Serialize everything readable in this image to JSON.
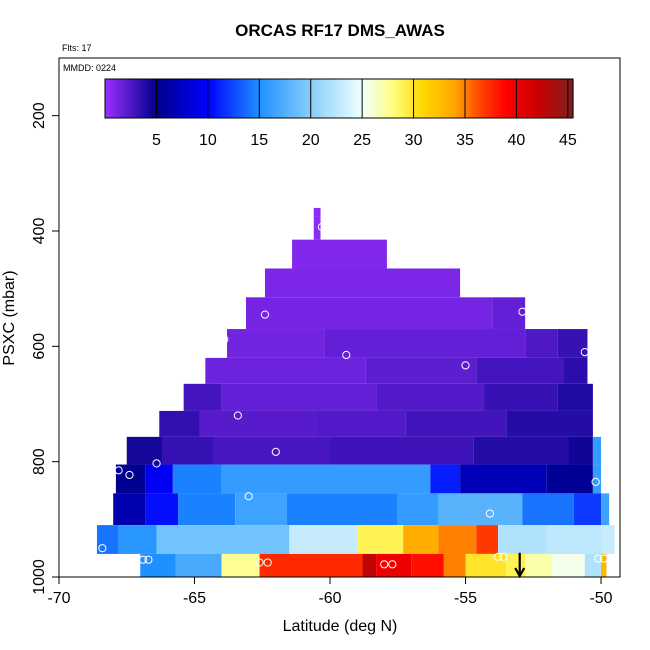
{
  "chart_data": {
    "type": "heatmap",
    "title": "ORCAS RF17 DMS_AWAS",
    "annotation_flights": "Flts: 17",
    "annotation_date": "MMDD: 0224",
    "xlabel": "Latitude (deg N)",
    "ylabel": "PSXC (mbar)",
    "xlim": [
      -70,
      -49.3
    ],
    "ylim": [
      1000,
      100
    ],
    "x_ticks": [
      -70,
      -65,
      -60,
      -55,
      -50
    ],
    "x_tick_labels": [
      "-70",
      "-65",
      "-60",
      "-55",
      "-50"
    ],
    "y_ticks": [
      200,
      400,
      600,
      800,
      1000
    ],
    "y_tick_labels": [
      "200",
      "400",
      "600",
      "800",
      "1000"
    ],
    "colorbar": {
      "range": [
        0,
        45.5
      ],
      "ticks": [
        5,
        10,
        15,
        20,
        25,
        30,
        35,
        40,
        45
      ],
      "tick_labels": [
        "5",
        "10",
        "15",
        "20",
        "25",
        "30",
        "35",
        "40",
        "45"
      ],
      "boundaries": [
        0,
        5,
        10,
        15,
        20,
        25,
        30,
        35,
        40,
        45,
        45.5
      ],
      "stops": [
        [
          0,
          "#9b30ff"
        ],
        [
          5,
          "#00008b"
        ],
        [
          10,
          "#0000ff"
        ],
        [
          15,
          "#1e90ff"
        ],
        [
          20,
          "#87cefa"
        ],
        [
          25,
          "#f0ffff"
        ],
        [
          28,
          "#ffff7f"
        ],
        [
          31,
          "#ffd700"
        ],
        [
          34,
          "#ffa500"
        ],
        [
          36.5,
          "#ff4500"
        ],
        [
          39,
          "#ff0000"
        ],
        [
          42,
          "#cd0000"
        ],
        [
          45.5,
          "#7f1f1f"
        ]
      ]
    },
    "bands": [
      {
        "p_top": 360,
        "p_bottom": 375,
        "segments": [
          {
            "x0": -60.6,
            "x1": -60.35,
            "v": 0.5
          }
        ]
      },
      {
        "p_top": 375,
        "p_bottom": 415,
        "segments": [
          {
            "x0": -60.6,
            "x1": -60.35,
            "v": 0.5
          }
        ]
      },
      {
        "p_top": 415,
        "p_bottom": 465,
        "segments": [
          {
            "x0": -61.4,
            "x1": -57.9,
            "v": 0.8
          }
        ]
      },
      {
        "p_top": 465,
        "p_bottom": 515,
        "segments": [
          {
            "x0": -62.4,
            "x1": -55.2,
            "v": 1.0
          }
        ]
      },
      {
        "p_top": 515,
        "p_bottom": 570,
        "segments": [
          {
            "x0": -63.1,
            "x1": -54.0,
            "v": 1.2
          },
          {
            "x0": -54.0,
            "x1": -52.8,
            "v": 1.8
          }
        ]
      },
      {
        "p_top": 570,
        "p_bottom": 620,
        "segments": [
          {
            "x0": -63.8,
            "x1": -60.2,
            "v": 1.3
          },
          {
            "x0": -60.2,
            "x1": -52.8,
            "v": 1.8
          },
          {
            "x0": -52.8,
            "x1": -51.6,
            "v": 2.5
          },
          {
            "x0": -51.6,
            "x1": -50.5,
            "v": 3.2
          }
        ]
      },
      {
        "p_top": 620,
        "p_bottom": 665,
        "segments": [
          {
            "x0": -64.6,
            "x1": -58.7,
            "v": 1.5
          },
          {
            "x0": -58.7,
            "x1": -54.6,
            "v": 2.0
          },
          {
            "x0": -54.6,
            "x1": -51.4,
            "v": 2.8
          },
          {
            "x0": -51.4,
            "x1": -50.5,
            "v": 3.6
          }
        ]
      },
      {
        "p_top": 665,
        "p_bottom": 712,
        "segments": [
          {
            "x0": -65.4,
            "x1": -64.0,
            "v": 2.8
          },
          {
            "x0": -64.0,
            "x1": -58.3,
            "v": 1.8
          },
          {
            "x0": -58.3,
            "x1": -54.3,
            "v": 2.3
          },
          {
            "x0": -54.3,
            "x1": -51.6,
            "v": 3.2
          },
          {
            "x0": -51.6,
            "x1": -50.3,
            "v": 4.0
          }
        ]
      },
      {
        "p_top": 712,
        "p_bottom": 757,
        "segments": [
          {
            "x0": -66.3,
            "x1": -64.8,
            "v": 3.4
          },
          {
            "x0": -64.8,
            "x1": -60.5,
            "v": 2.2
          },
          {
            "x0": -60.5,
            "x1": -57.2,
            "v": 2.4
          },
          {
            "x0": -57.2,
            "x1": -53.5,
            "v": 2.9
          },
          {
            "x0": -53.5,
            "x1": -50.3,
            "v": 3.8
          }
        ]
      },
      {
        "p_top": 757,
        "p_bottom": 805,
        "segments": [
          {
            "x0": -67.5,
            "x1": -66.2,
            "v": 4.3
          },
          {
            "x0": -66.2,
            "x1": -64.3,
            "v": 3.3
          },
          {
            "x0": -64.3,
            "x1": -60.0,
            "v": 2.7
          },
          {
            "x0": -60.0,
            "x1": -54.7,
            "v": 3.0
          },
          {
            "x0": -54.7,
            "x1": -51.2,
            "v": 3.8
          },
          {
            "x0": -51.2,
            "x1": -50.3,
            "v": 4.5
          },
          {
            "x0": -50.3,
            "x1": -50.0,
            "v": 16.0
          }
        ]
      },
      {
        "p_top": 805,
        "p_bottom": 855,
        "segments": [
          {
            "x0": -67.9,
            "x1": -66.8,
            "v": 5.2
          },
          {
            "x0": -66.8,
            "x1": -65.8,
            "v": 9.5
          },
          {
            "x0": -65.8,
            "x1": -64.0,
            "v": 14.5
          },
          {
            "x0": -64.0,
            "x1": -56.3,
            "v": 16.0
          },
          {
            "x0": -56.3,
            "x1": -55.2,
            "v": 11.0
          },
          {
            "x0": -55.2,
            "x1": -52.0,
            "v": 7.0
          },
          {
            "x0": -52.0,
            "x1": -50.3,
            "v": 5.5
          },
          {
            "x0": -50.3,
            "x1": -50.0,
            "v": 16.0
          }
        ]
      },
      {
        "p_top": 855,
        "p_bottom": 910,
        "segments": [
          {
            "x0": -68.0,
            "x1": -66.8,
            "v": 6.5
          },
          {
            "x0": -66.8,
            "x1": -65.6,
            "v": 10.5
          },
          {
            "x0": -65.6,
            "x1": -63.5,
            "v": 14.5
          },
          {
            "x0": -63.5,
            "x1": -61.6,
            "v": 16.5
          },
          {
            "x0": -61.6,
            "x1": -57.5,
            "v": 14.5
          },
          {
            "x0": -57.5,
            "x1": -56.0,
            "v": 16.0
          },
          {
            "x0": -56.0,
            "x1": -52.9,
            "v": 17.8
          },
          {
            "x0": -52.9,
            "x1": -51.0,
            "v": 14.0
          },
          {
            "x0": -51.0,
            "x1": -50.0,
            "v": 12.0
          },
          {
            "x0": -50.0,
            "x1": -49.7,
            "v": 16.5
          }
        ]
      },
      {
        "p_top": 910,
        "p_bottom": 960,
        "segments": [
          {
            "x0": -68.6,
            "x1": -67.8,
            "v": 14.0
          },
          {
            "x0": -67.8,
            "x1": -66.4,
            "v": 15.5
          },
          {
            "x0": -66.4,
            "x1": -61.5,
            "v": 19.0
          },
          {
            "x0": -61.5,
            "x1": -59.0,
            "v": 23.0
          },
          {
            "x0": -59.0,
            "x1": -57.3,
            "v": 29.0
          },
          {
            "x0": -57.3,
            "x1": -56.0,
            "v": 33.5
          },
          {
            "x0": -56.0,
            "x1": -54.6,
            "v": 35.0
          },
          {
            "x0": -54.6,
            "x1": -53.8,
            "v": 37.0
          },
          {
            "x0": -53.8,
            "x1": -52.0,
            "v": 22.0
          },
          {
            "x0": -52.0,
            "x1": -50.0,
            "v": 22.5
          },
          {
            "x0": -50.0,
            "x1": -49.5,
            "v": 23.0
          }
        ]
      },
      {
        "p_top": 960,
        "p_bottom": 1000,
        "segments": [
          {
            "x0": -67.0,
            "x1": -65.7,
            "v": 15.0
          },
          {
            "x0": -65.7,
            "x1": -64.0,
            "v": 17.0
          },
          {
            "x0": -64.0,
            "x1": -62.6,
            "v": 27.5
          },
          {
            "x0": -62.6,
            "x1": -58.8,
            "v": 37.5
          },
          {
            "x0": -58.8,
            "x1": -58.3,
            "v": 42.5
          },
          {
            "x0": -58.3,
            "x1": -57.0,
            "v": 40.0
          },
          {
            "x0": -57.0,
            "x1": -55.8,
            "v": 38.5
          },
          {
            "x0": -55.8,
            "x1": -55.0,
            "v": 35.0
          },
          {
            "x0": -55.0,
            "x1": -53.5,
            "v": 30.0
          },
          {
            "x0": -53.5,
            "x1": -52.8,
            "v": 29.0
          },
          {
            "x0": -52.8,
            "x1": -51.8,
            "v": 27.0
          },
          {
            "x0": -51.8,
            "x1": -50.6,
            "v": 25.5
          },
          {
            "x0": -50.6,
            "x1": -50.0,
            "v": 22.0
          },
          {
            "x0": -50.0,
            "x1": -49.8,
            "v": 33.0
          }
        ]
      }
    ],
    "samples": [
      {
        "lat": -60.3,
        "p": 393
      },
      {
        "lat": -62.4,
        "p": 545
      },
      {
        "lat": -52.9,
        "p": 540
      },
      {
        "lat": -63.9,
        "p": 588
      },
      {
        "lat": -59.4,
        "p": 615
      },
      {
        "lat": -55.0,
        "p": 633
      },
      {
        "lat": -50.6,
        "p": 610
      },
      {
        "lat": -63.4,
        "p": 720
      },
      {
        "lat": -62.0,
        "p": 783
      },
      {
        "lat": -66.4,
        "p": 803
      },
      {
        "lat": -67.8,
        "p": 815
      },
      {
        "lat": -67.4,
        "p": 823
      },
      {
        "lat": -50.2,
        "p": 835
      },
      {
        "lat": -63.0,
        "p": 860
      },
      {
        "lat": -54.1,
        "p": 890
      },
      {
        "lat": -68.4,
        "p": 950
      },
      {
        "lat": -53.8,
        "p": 965
      },
      {
        "lat": -53.6,
        "p": 965
      },
      {
        "lat": -66.9,
        "p": 970
      },
      {
        "lat": -66.7,
        "p": 970
      },
      {
        "lat": -62.6,
        "p": 975
      },
      {
        "lat": -62.3,
        "p": 975
      },
      {
        "lat": -58.0,
        "p": 978
      },
      {
        "lat": -57.7,
        "p": 978
      },
      {
        "lat": -50.1,
        "p": 968
      },
      {
        "lat": -49.9,
        "p": 968
      }
    ],
    "marker_latitude": -53.0,
    "grid": false
  }
}
